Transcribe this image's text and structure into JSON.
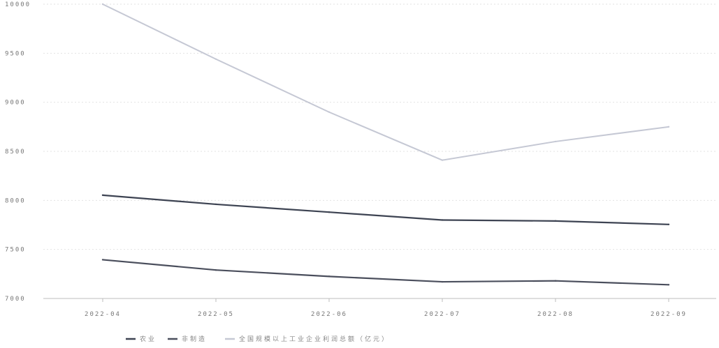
{
  "chart_data": {
    "type": "line",
    "title": "",
    "xlabel": "",
    "ylabel": "",
    "categories": [
      "2022-04",
      "2022-05",
      "2022-06",
      "2022-07",
      "2022-08",
      "2022-09"
    ],
    "ylim": [
      7000,
      10000
    ],
    "yticks": [
      7000,
      7500,
      8000,
      8500,
      9000,
      9500,
      10000
    ],
    "grid": true,
    "legend_position": "bottom-center",
    "series": [
      {
        "name": "农业",
        "values": [
          8053,
          7960,
          7880,
          7800,
          7790,
          7755
        ],
        "color": "#3d4352"
      },
      {
        "name": "非制造",
        "values": [
          7395,
          7290,
          7225,
          7170,
          7180,
          7140
        ],
        "color": "#4a4e5c"
      },
      {
        "name": "全国规模以上工业企业利润总额（亿元）",
        "values": [
          10000,
          9440,
          8900,
          8410,
          8600,
          8750
        ],
        "color": "#c5c8d4"
      }
    ]
  }
}
